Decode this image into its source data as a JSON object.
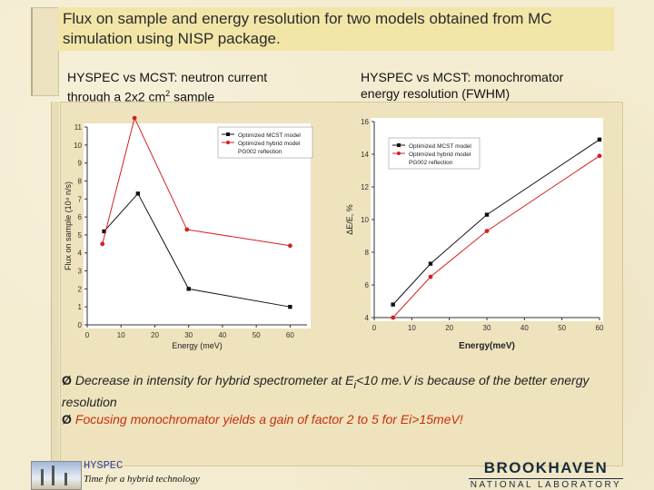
{
  "slide": {
    "title": "Flux on sample and energy resolution for two models obtained from MC simulation using NISP package.",
    "left_heading_line1": "HYSPEC vs MCST: neutron current",
    "left_heading_line2_pre": "through a 2x2 cm",
    "left_heading_line2_sup": "2",
    "left_heading_line2_post": " sample",
    "right_heading_line1": "HYSPEC vs MCST: monochromator",
    "right_heading_line2": "energy resolution (FWHM)",
    "bullet1_pre": "Decrease in intensity for hybrid spectrometer at E",
    "bullet1_sub": "i",
    "bullet1_post": "<10 me.V is because of the better energy resolution",
    "bullet2": "Focusing monochromator yields a gain of factor 2 to 5 for Ei>15meV!",
    "arrow_glyph": "Ø",
    "footer_brand": "HYSPEC",
    "footer_tagline": "Time for a hybrid technology",
    "lab_name": "BROOKHAVEN",
    "lab_subtitle": "NATIONAL LABORATORY"
  },
  "colors": {
    "mcst": "#111111",
    "hybrid": "#d42020",
    "accent_red": "#c8300a"
  },
  "chart_data": [
    {
      "type": "line",
      "xlabel": "Energy (meV)",
      "ylabel": "Flux on sample (10⁴ n/s)",
      "xlim": [
        0,
        65
      ],
      "ylim": [
        0,
        11
      ],
      "xticks": [
        "0",
        "10",
        "20",
        "30",
        "40",
        "50",
        "60"
      ],
      "yticks": [
        "0",
        "1",
        "2",
        "3",
        "4",
        "5",
        "6",
        "7",
        "8",
        "9",
        "10",
        "11"
      ],
      "legend_position": "top-right",
      "legend_note": "PG002 reflection",
      "series": [
        {
          "name": "Optimized MCST model",
          "x": [
            5,
            15,
            30,
            60
          ],
          "y": [
            5.2,
            7.3,
            2.0,
            1.0
          ]
        },
        {
          "name": "Optimized hybrid model",
          "x": [
            4.5,
            14,
            29.5,
            60
          ],
          "y": [
            4.5,
            11.5,
            5.3,
            4.4
          ]
        }
      ]
    },
    {
      "type": "line",
      "xlabel": "Energy(meV)",
      "ylabel": "ΔE/E, %",
      "xlim": [
        0,
        60
      ],
      "ylim": [
        4,
        16
      ],
      "xticks": [
        "0",
        "10",
        "20",
        "30",
        "40",
        "50",
        "60"
      ],
      "yticks": [
        "4",
        "6",
        "8",
        "10",
        "12",
        "14",
        "16"
      ],
      "legend_position": "top-left",
      "legend_note": "PG002 reflection",
      "series": [
        {
          "name": "Optimized MCST model",
          "x": [
            5,
            15,
            30,
            60
          ],
          "y": [
            4.8,
            7.3,
            10.3,
            14.9
          ]
        },
        {
          "name": "Optimized hybrid model",
          "x": [
            5,
            15,
            30,
            60
          ],
          "y": [
            4.0,
            6.5,
            9.3,
            13.9
          ]
        }
      ]
    }
  ]
}
